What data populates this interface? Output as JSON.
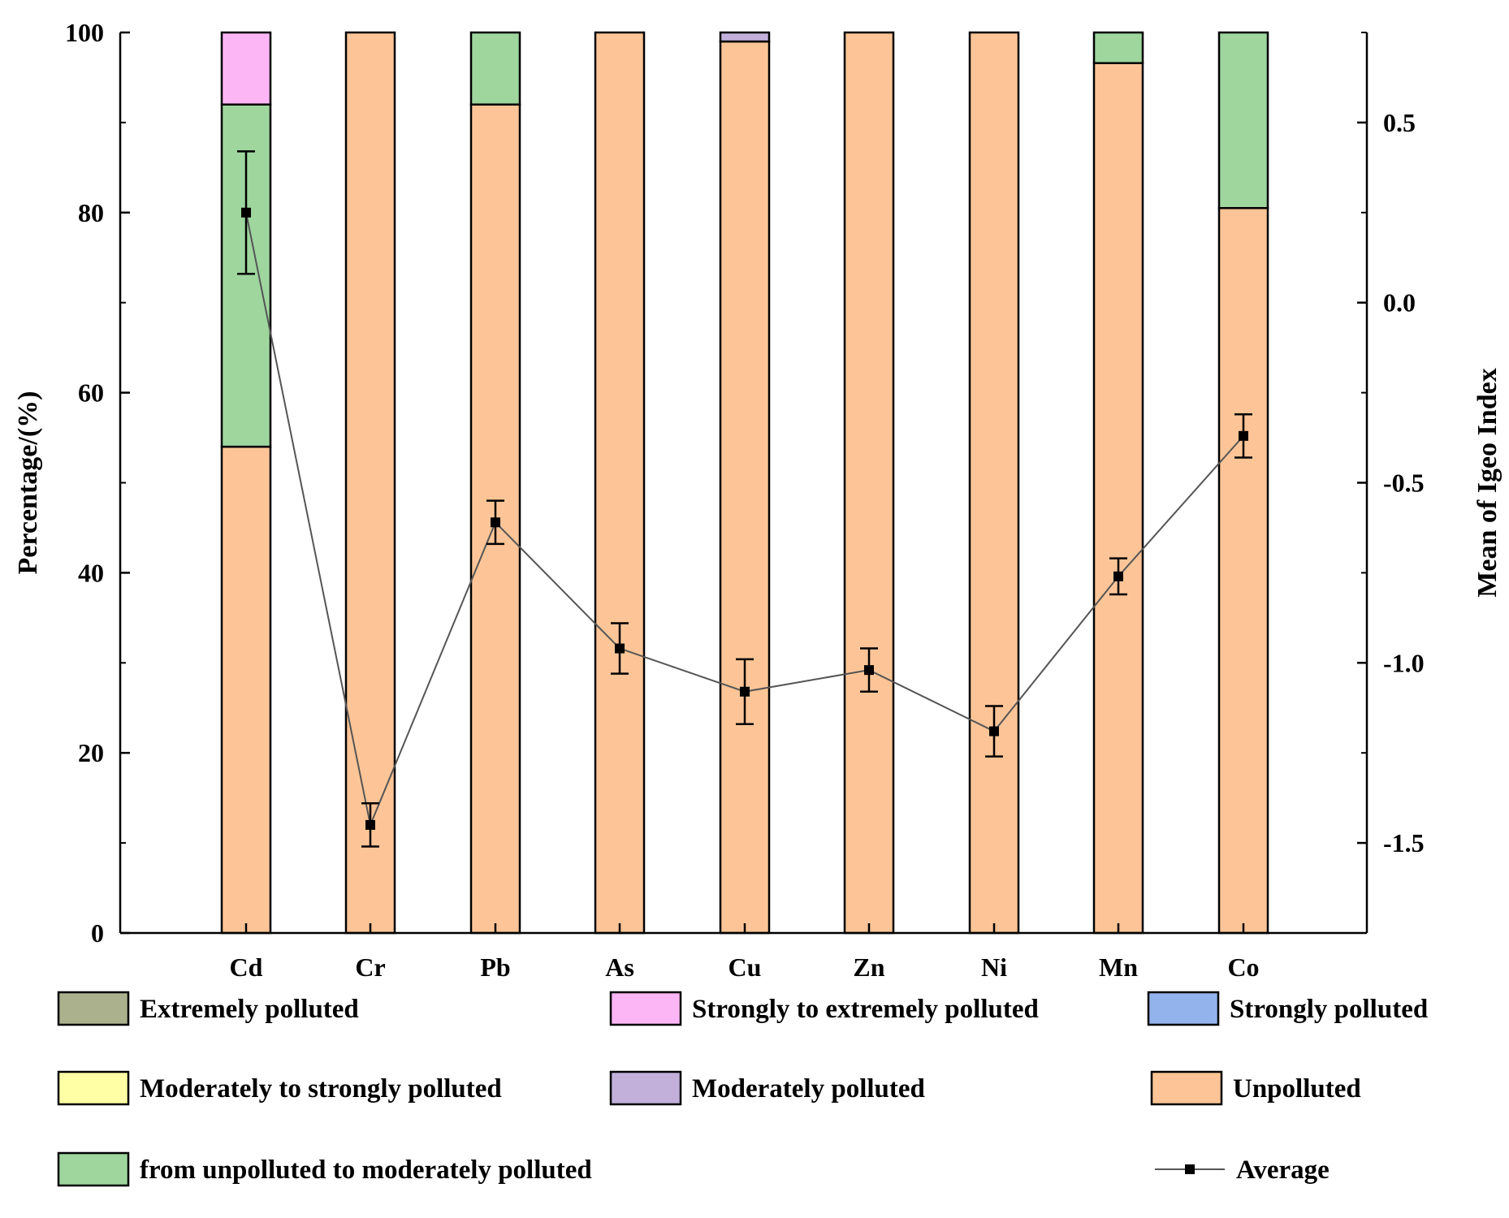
{
  "chart_data": {
    "type": "bar",
    "stacked": true,
    "categories": [
      "Cd",
      "Cr",
      "Pb",
      "As",
      "Cu",
      "Zn",
      "Ni",
      "Mn",
      "Co"
    ],
    "ylabel": "Percentage/(%)",
    "ylim": [
      0,
      100
    ],
    "yticks": [
      "0",
      "20",
      "40",
      "60",
      "80",
      "100"
    ],
    "y2label": "Mean of Igeo Index",
    "y2lim": [
      -1.75,
      0.75
    ],
    "y2ticks": [
      "-1.5",
      "-1.0",
      "-0.5",
      "0.0",
      "0.5"
    ],
    "series": [
      {
        "name": "Unpolluted",
        "color": "#FDC597",
        "values": [
          54,
          100,
          92,
          100,
          99,
          100,
          100,
          96.6,
          80.5
        ]
      },
      {
        "name": "from unpolluted to moderately polluted",
        "color": "#9ED69E",
        "values": [
          38,
          0,
          8,
          0,
          0,
          0,
          0,
          3.4,
          19.5
        ]
      },
      {
        "name": "Moderately polluted",
        "color": "#C2B0DA",
        "values": [
          0,
          0,
          0,
          0,
          1,
          0,
          0,
          0,
          0
        ]
      },
      {
        "name": "Moderately to strongly polluted",
        "color": "#FFFFA6",
        "values": [
          0,
          0,
          0,
          0,
          0,
          0,
          0,
          0,
          0
        ]
      },
      {
        "name": "Strongly polluted",
        "color": "#92B3EB",
        "values": [
          0,
          0,
          0,
          0,
          0,
          0,
          0,
          0,
          0
        ]
      },
      {
        "name": "Strongly to extremely polluted",
        "color": "#FCB5F5",
        "values": [
          8,
          0,
          0,
          0,
          0,
          0,
          0,
          0,
          0
        ]
      },
      {
        "name": "Extremely polluted",
        "color": "#ABB08D",
        "values": [
          0,
          0,
          0,
          0,
          0,
          0,
          0,
          0,
          0
        ]
      }
    ],
    "average": {
      "name": "Average",
      "axis": "right",
      "values": [
        0.25,
        -1.45,
        -0.61,
        -0.96,
        -1.08,
        -1.02,
        -1.19,
        -0.76,
        -0.37
      ],
      "errors": [
        0.17,
        0.06,
        0.06,
        0.07,
        0.09,
        0.06,
        0.07,
        0.05,
        0.06
      ]
    },
    "legend": {
      "placement": "bottom",
      "items": [
        {
          "label": "Extremely polluted",
          "color": "#ABB08D"
        },
        {
          "label": "Strongly to extremely polluted",
          "color": "#FCB5F5"
        },
        {
          "label": "Strongly polluted",
          "color": "#92B3EB"
        },
        {
          "label": "Moderately to strongly polluted",
          "color": "#FFFFA6"
        },
        {
          "label": "Moderately polluted",
          "color": "#C2B0DA"
        },
        {
          "label": "Unpolluted",
          "color": "#FDC597"
        },
        {
          "label": "from unpolluted to moderately polluted",
          "color": "#9ED69E"
        },
        {
          "label": "Average",
          "marker": "line-square"
        }
      ]
    }
  }
}
